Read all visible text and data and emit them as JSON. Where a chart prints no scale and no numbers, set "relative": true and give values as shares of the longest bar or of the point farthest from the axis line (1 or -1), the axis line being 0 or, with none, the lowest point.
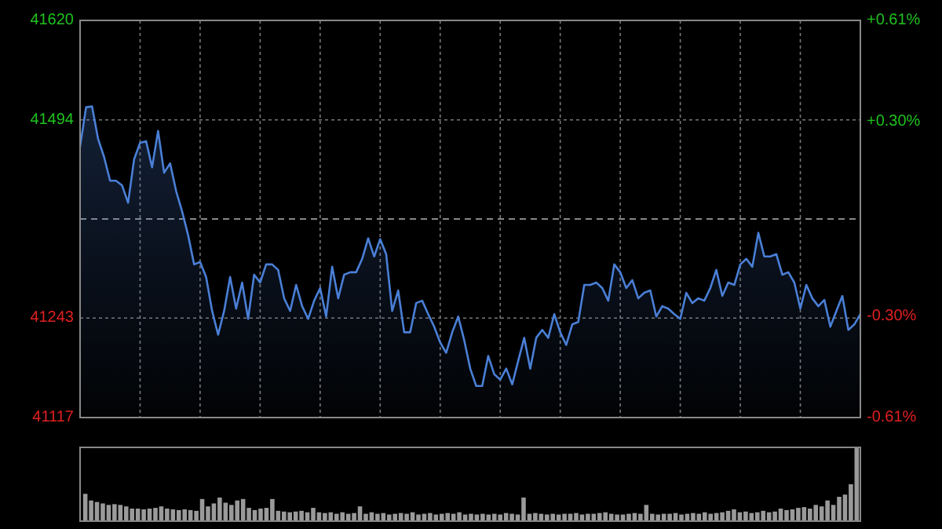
{
  "chart_data": [
    {
      "type": "area",
      "categories": [
        null,
        null,
        null,
        null,
        null,
        null,
        null,
        null,
        null,
        null,
        null,
        null,
        null,
        null,
        null,
        null,
        null,
        null,
        null,
        null,
        null,
        null,
        null,
        null,
        null,
        null,
        null,
        null,
        null,
        null,
        null,
        null,
        null,
        null,
        null,
        null,
        null,
        null,
        null,
        null,
        null,
        null,
        null,
        null,
        null,
        null,
        null,
        null,
        null,
        null,
        null,
        null,
        null,
        null,
        null,
        null,
        null,
        null,
        null,
        null,
        null,
        null,
        null,
        null,
        null,
        null,
        null,
        null,
        null,
        null,
        null,
        null,
        null,
        null,
        null,
        null,
        null,
        null,
        null,
        null,
        null,
        null,
        null,
        null,
        null,
        null,
        null,
        null,
        null,
        null,
        null,
        null,
        null,
        null,
        null,
        null,
        null,
        null,
        null,
        null,
        null,
        null,
        null,
        null,
        null,
        null,
        null,
        null,
        null,
        null,
        null,
        null,
        null,
        null,
        null,
        null,
        null,
        null,
        null,
        null,
        null,
        null,
        null,
        null,
        null,
        null,
        null,
        null,
        null,
        null,
        null
      ],
      "series": [
        {
          "color": "#4a7fd6",
          "values": [
            41460,
            41510,
            41511,
            41470,
            41447,
            41417,
            41417,
            41411,
            41389,
            41444,
            41465,
            41467,
            41434,
            41480,
            41427,
            41439,
            41404,
            41378,
            41348,
            41311,
            41314,
            41295,
            41252,
            41222,
            41252,
            41295,
            41255,
            41288,
            41242,
            41298,
            41288,
            41311,
            41311,
            41304,
            41268,
            41252,
            41285,
            41258,
            41242,
            41265,
            41281,
            41245,
            41308,
            41268,
            41298,
            41301,
            41301,
            41318,
            41344,
            41321,
            41343,
            41324,
            41252,
            41278,
            41225,
            41225,
            41262,
            41265,
            41248,
            41232,
            41212,
            41199,
            41225,
            41245,
            41215,
            41179,
            41157,
            41157,
            41195,
            41172,
            41165,
            41179,
            41159,
            41189,
            41218,
            41179,
            41218,
            41228,
            41218,
            41248,
            41225,
            41209,
            41235,
            41238,
            41285,
            41285,
            41288,
            41281,
            41265,
            41311,
            41301,
            41281,
            41291,
            41268,
            41275,
            41278,
            41245,
            41258,
            41255,
            41248,
            41242,
            41275,
            41262,
            41268,
            41265,
            41281,
            41304,
            41271,
            41288,
            41285,
            41311,
            41318,
            41308,
            41351,
            41321,
            41321,
            41324,
            41298,
            41301,
            41288,
            41255,
            41285,
            41268,
            41258,
            41266,
            41232,
            41252,
            41271,
            41228,
            41235,
            41248
          ]
        }
      ],
      "ylim": [
        41117,
        41620
      ],
      "yticks": [
        41117,
        41243,
        41494,
        41620
      ],
      "y2lim": [
        -0.61,
        0.61
      ],
      "y2ticks": [
        {
          "value": -0.61,
          "label": "-0.61%"
        },
        {
          "value": -0.3,
          "label": "-0.30%"
        },
        {
          "value": 0.3,
          "label": "+0.30%"
        },
        {
          "value": 0.61,
          "label": "+0.61%"
        }
      ],
      "ref_lines": [
        {
          "axis": "y2",
          "value": 0,
          "line_style": "dashed",
          "color": "#888888"
        }
      ],
      "grid": true,
      "line_style": "solid"
    },
    {
      "type": "bar",
      "relative": true,
      "color": "#9a9a9a",
      "categories": [
        null,
        null,
        null,
        null,
        null,
        null,
        null,
        null,
        null,
        null,
        null,
        null,
        null,
        null,
        null,
        null,
        null,
        null,
        null,
        null,
        null,
        null,
        null,
        null,
        null,
        null,
        null,
        null,
        null,
        null,
        null,
        null,
        null,
        null,
        null,
        null,
        null,
        null,
        null,
        null,
        null,
        null,
        null,
        null,
        null,
        null,
        null,
        null,
        null,
        null,
        null,
        null,
        null,
        null,
        null,
        null,
        null,
        null,
        null,
        null,
        null,
        null,
        null,
        null,
        null,
        null,
        null,
        null,
        null,
        null,
        null,
        null,
        null,
        null,
        null,
        null,
        null,
        null,
        null,
        null,
        null,
        null,
        null,
        null,
        null,
        null,
        null,
        null,
        null,
        null,
        null,
        null,
        null,
        null,
        null,
        null,
        null,
        null,
        null,
        null,
        null,
        null,
        null,
        null,
        null,
        null,
        null,
        null,
        null,
        null,
        null,
        null,
        null,
        null,
        null,
        null,
        null,
        null,
        null,
        null,
        null,
        null,
        null,
        null,
        null,
        null,
        null,
        null,
        null,
        null,
        null,
        null,
        null
      ],
      "values": [
        0.37,
        0.28,
        0.26,
        0.24,
        0.22,
        0.23,
        0.22,
        0.2,
        0.17,
        0.17,
        0.16,
        0.17,
        0.18,
        0.2,
        0.17,
        0.16,
        0.15,
        0.16,
        0.15,
        0.14,
        0.3,
        0.2,
        0.24,
        0.32,
        0.25,
        0.22,
        0.28,
        0.3,
        0.18,
        0.15,
        0.17,
        0.18,
        0.3,
        0.14,
        0.13,
        0.12,
        0.13,
        0.14,
        0.12,
        0.18,
        0.12,
        0.11,
        0.12,
        0.1,
        0.12,
        0.1,
        0.11,
        0.2,
        0.1,
        0.12,
        0.1,
        0.11,
        0.09,
        0.1,
        0.11,
        0.1,
        0.12,
        0.09,
        0.1,
        0.11,
        0.09,
        0.1,
        0.11,
        0.1,
        0.12,
        0.09,
        0.1,
        0.09,
        0.1,
        0.09,
        0.1,
        0.09,
        0.11,
        0.1,
        0.09,
        0.32,
        0.1,
        0.11,
        0.1,
        0.09,
        0.1,
        0.09,
        0.1,
        0.1,
        0.11,
        0.09,
        0.1,
        0.1,
        0.11,
        0.12,
        0.1,
        0.09,
        0.09,
        0.1,
        0.11,
        0.1,
        0.22,
        0.1,
        0.09,
        0.1,
        0.1,
        0.11,
        0.09,
        0.1,
        0.11,
        0.1,
        0.12,
        0.1,
        0.11,
        0.12,
        0.14,
        0.16,
        0.12,
        0.13,
        0.11,
        0.12,
        0.14,
        0.12,
        0.13,
        0.17,
        0.15,
        0.16,
        0.18,
        0.19,
        0.17,
        0.22,
        0.2,
        0.28,
        0.22,
        0.33,
        0.36,
        0.5,
        1
      ]
    }
  ]
}
